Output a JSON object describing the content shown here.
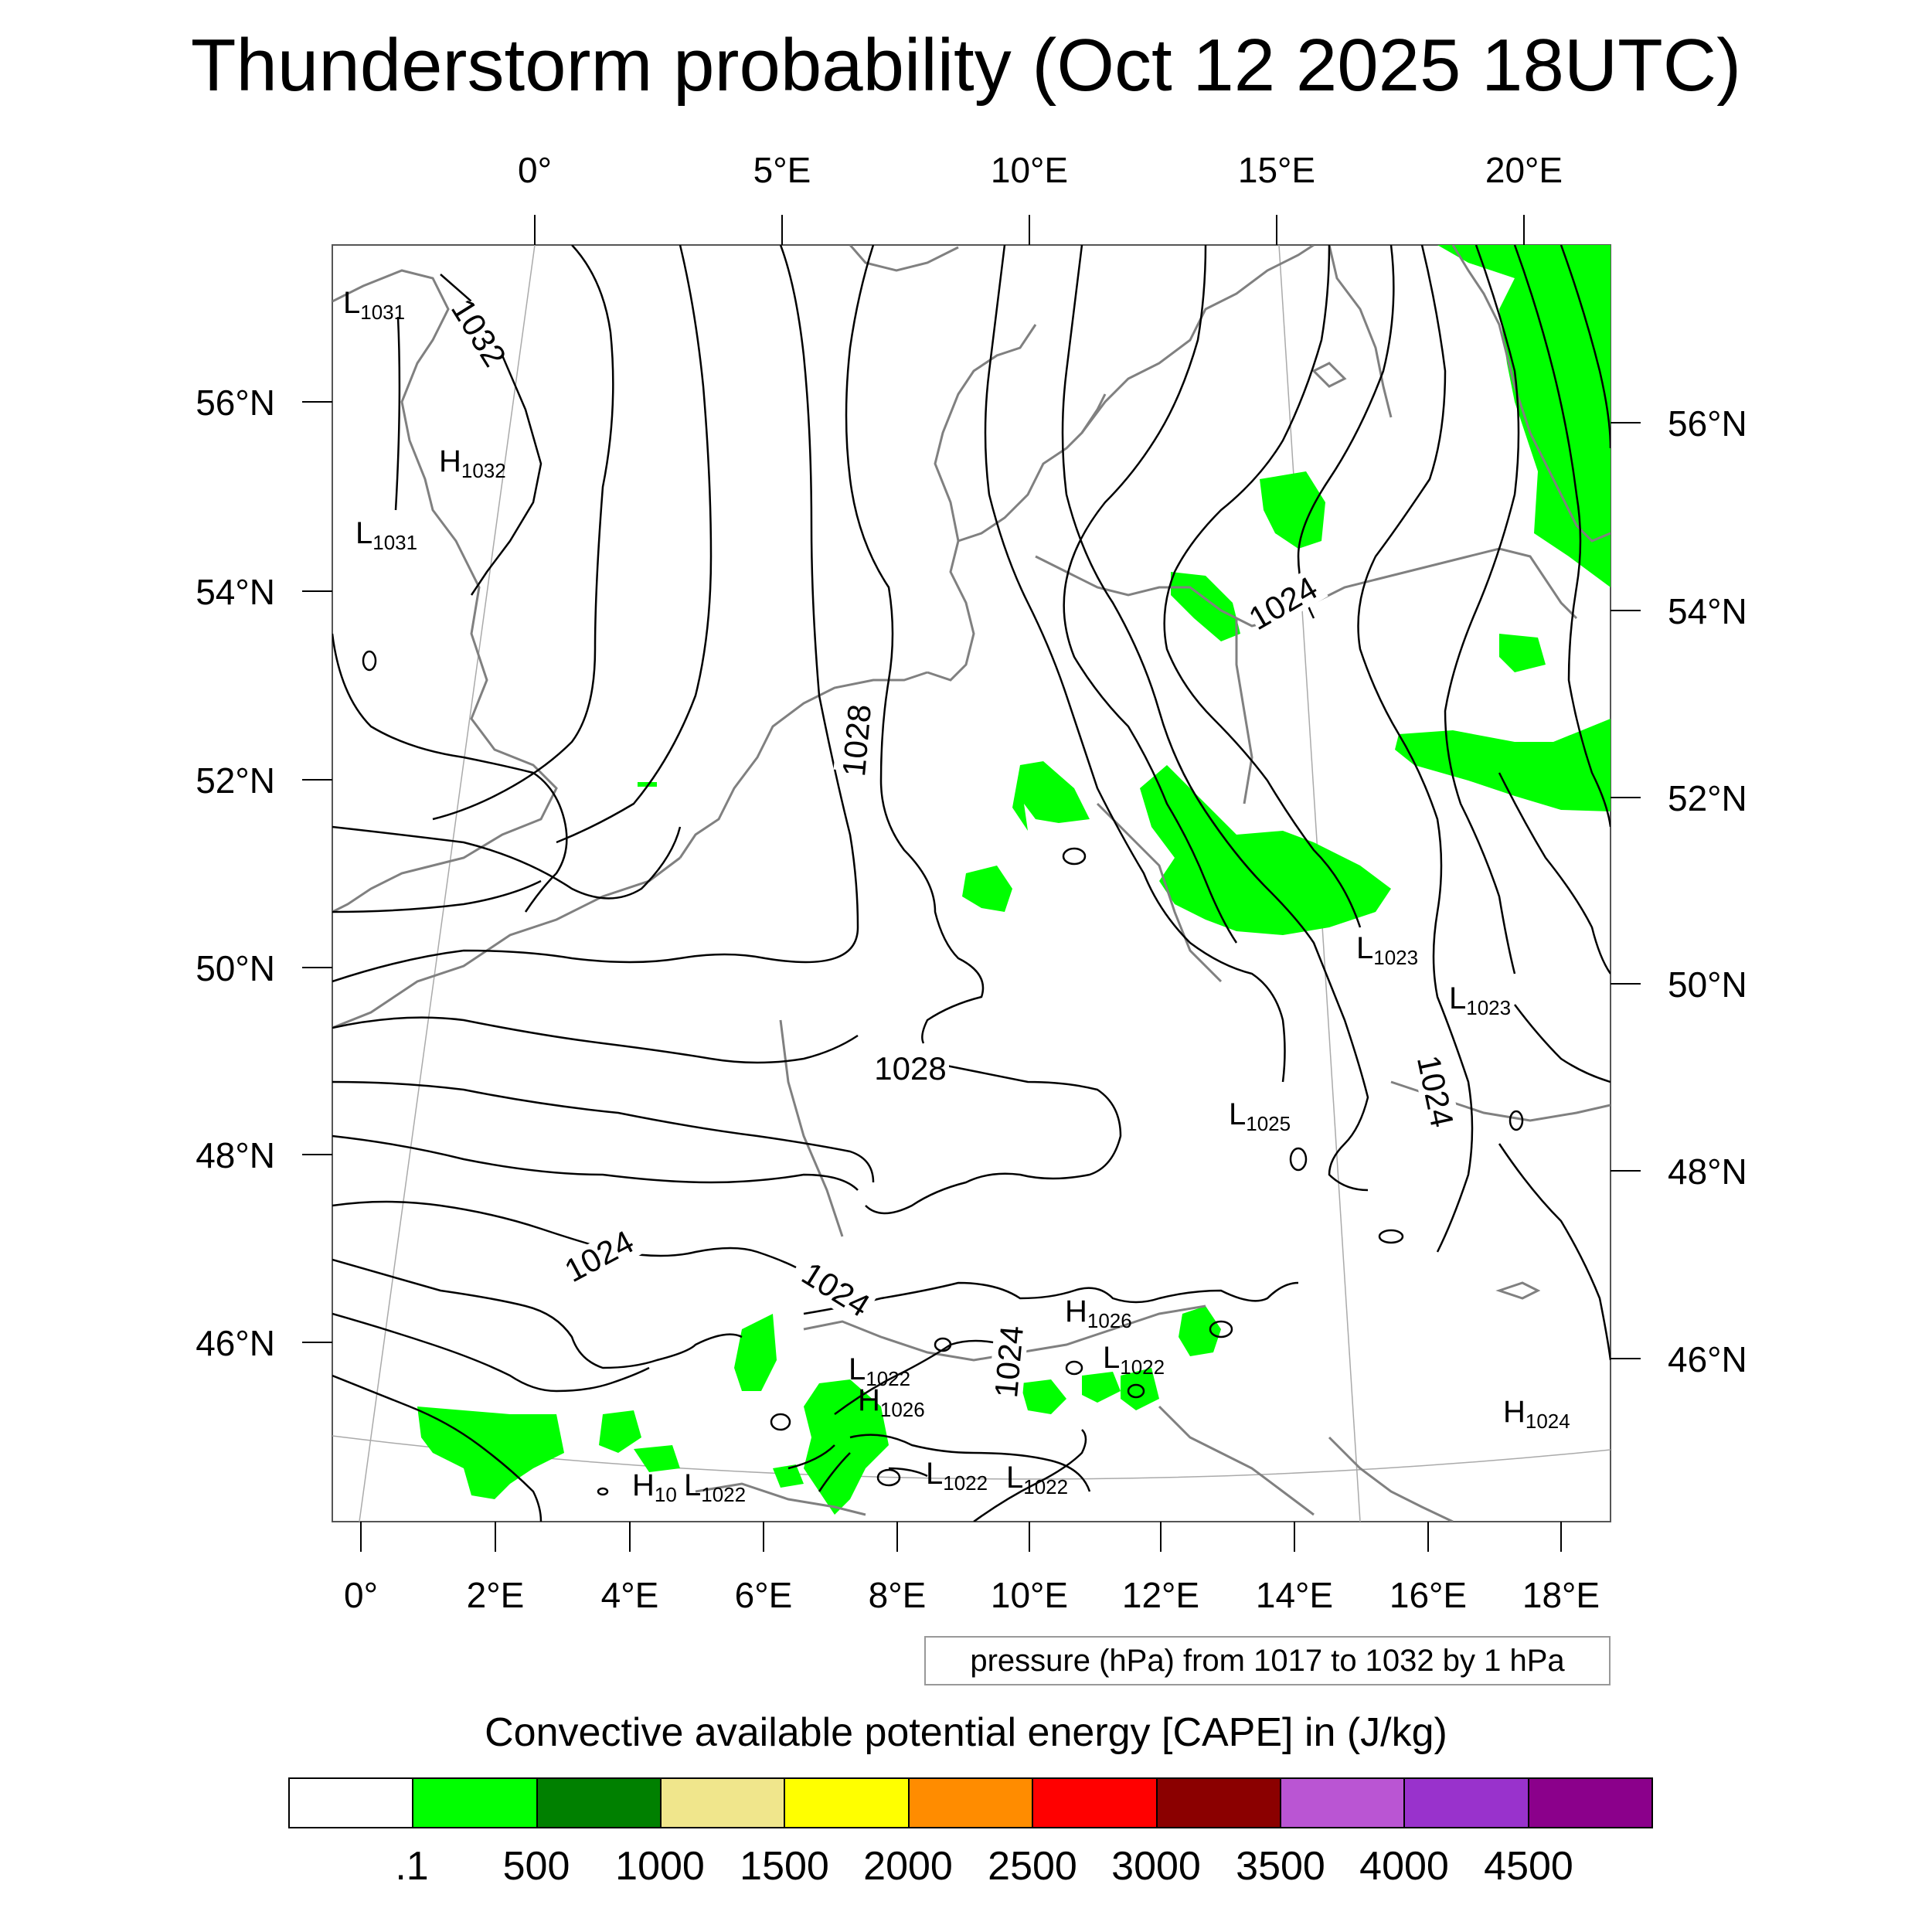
{
  "title": "Thunderstorm probability (Oct 12 2025 18UTC)",
  "axes": {
    "top_ticks": [
      "0°",
      "5°E",
      "10°E",
      "15°E",
      "20°E"
    ],
    "bottom_ticks": [
      "0°",
      "2°E",
      "4°E",
      "6°E",
      "8°E",
      "10°E",
      "12°E",
      "14°E",
      "16°E",
      "18°E"
    ],
    "left_ticks": [
      "56°N",
      "54°N",
      "52°N",
      "50°N",
      "48°N",
      "46°N"
    ],
    "right_ticks": [
      "56°N",
      "54°N",
      "52°N",
      "50°N",
      "48°N",
      "46°N"
    ]
  },
  "isobar_labels": [
    "1032",
    "1028",
    "1028",
    "1024",
    "1024",
    "1024",
    "1024",
    "1024"
  ],
  "pressure_centers": [
    {
      "type": "L",
      "value": "1031"
    },
    {
      "type": "H",
      "value": "1032"
    },
    {
      "type": "L",
      "value": "1031"
    },
    {
      "type": "L",
      "value": "1023"
    },
    {
      "type": "L",
      "value": "1023"
    },
    {
      "type": "L",
      "value": "1025"
    },
    {
      "type": "H",
      "value": "1026"
    },
    {
      "type": "L",
      "value": "1022"
    },
    {
      "type": "L",
      "value": "1022"
    },
    {
      "type": "H",
      "value": "1026"
    },
    {
      "type": "L",
      "value": "1022"
    },
    {
      "type": "L",
      "value": "1022"
    },
    {
      "type": "H",
      "value": "10"
    },
    {
      "type": "L",
      "value": "1022"
    },
    {
      "type": "H",
      "value": "1024"
    }
  ],
  "contour_info": "pressure (hPa) from 1017 to 1032 by 1 hPa",
  "colorbar": {
    "title": "Convective available potential energy [CAPE] in (J/kg)",
    "colors": [
      "#ffffff",
      "#00ff00",
      "#008000",
      "#f0e68c",
      "#ffff00",
      "#ff8c00",
      "#ff0000",
      "#8b0000",
      "#ba55d3",
      "#9932cc",
      "#8b008b"
    ],
    "labels": [
      ".1",
      "500",
      "1000",
      "1500",
      "2000",
      "2500",
      "3000",
      "3500",
      "4000",
      "4500"
    ]
  },
  "colors": {
    "cape_fill": "#00ff00",
    "coastline": "#808080",
    "isobar": "#000000"
  }
}
